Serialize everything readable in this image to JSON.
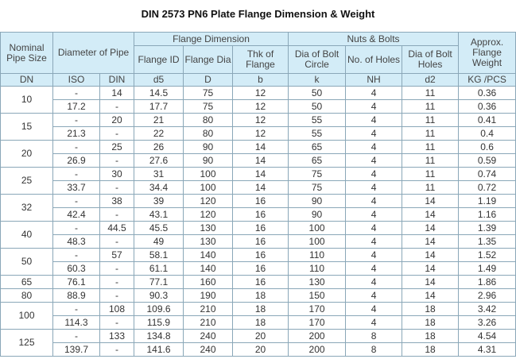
{
  "title": "DIN 2573 PN6 Plate Flange Dimension & Weight",
  "header": {
    "row1": [
      "Nominal Pipe Size",
      "Diameter of Pipe",
      "Flange Dimension",
      "Nuts & Bolts",
      "Approx. Flange Weight"
    ],
    "row2": [
      "Flange ID",
      "Flange Dia",
      "Thk of Flange",
      "Dia of Bolt Circle",
      "No. of Holes",
      "Dia of Bolt Holes"
    ],
    "units": [
      "DN",
      "ISO",
      "DIN",
      "d5",
      "D",
      "b",
      "k",
      "NH",
      "d2",
      "KG /PCS"
    ]
  },
  "table": {
    "groups": [
      {
        "dn": "10",
        "rows": [
          [
            "-",
            "14",
            "14.5",
            "75",
            "12",
            "50",
            "4",
            "11",
            "0.36"
          ],
          [
            "17.2",
            "-",
            "17.7",
            "75",
            "12",
            "50",
            "4",
            "11",
            "0.36"
          ]
        ]
      },
      {
        "dn": "15",
        "rows": [
          [
            "-",
            "20",
            "21",
            "80",
            "12",
            "55",
            "4",
            "11",
            "0.41"
          ],
          [
            "21.3",
            "-",
            "22",
            "80",
            "12",
            "55",
            "4",
            "11",
            "0.4"
          ]
        ]
      },
      {
        "dn": "20",
        "rows": [
          [
            "-",
            "25",
            "26",
            "90",
            "14",
            "65",
            "4",
            "11",
            "0.6"
          ],
          [
            "26.9",
            "-",
            "27.6",
            "90",
            "14",
            "65",
            "4",
            "11",
            "0.59"
          ]
        ]
      },
      {
        "dn": "25",
        "rows": [
          [
            "-",
            "30",
            "31",
            "100",
            "14",
            "75",
            "4",
            "11",
            "0.74"
          ],
          [
            "33.7",
            "-",
            "34.4",
            "100",
            "14",
            "75",
            "4",
            "11",
            "0.72"
          ]
        ]
      },
      {
        "dn": "32",
        "rows": [
          [
            "-",
            "38",
            "39",
            "120",
            "16",
            "90",
            "4",
            "14",
            "1.19"
          ],
          [
            "42.4",
            "-",
            "43.1",
            "120",
            "16",
            "90",
            "4",
            "14",
            "1.16"
          ]
        ]
      },
      {
        "dn": "40",
        "rows": [
          [
            "-",
            "44.5",
            "45.5",
            "130",
            "16",
            "100",
            "4",
            "14",
            "1.39"
          ],
          [
            "48.3",
            "-",
            "49",
            "130",
            "16",
            "100",
            "4",
            "14",
            "1.35"
          ]
        ]
      },
      {
        "dn": "50",
        "rows": [
          [
            "-",
            "57",
            "58.1",
            "140",
            "16",
            "110",
            "4",
            "14",
            "1.52"
          ],
          [
            "60.3",
            "-",
            "61.1",
            "140",
            "16",
            "110",
            "4",
            "14",
            "1.49"
          ]
        ]
      },
      {
        "dn": "65",
        "rows": [
          [
            "76.1",
            "-",
            "77.1",
            "160",
            "16",
            "130",
            "4",
            "14",
            "1.86"
          ]
        ]
      },
      {
        "dn": "80",
        "rows": [
          [
            "88.9",
            "-",
            "90.3",
            "190",
            "18",
            "150",
            "4",
            "14",
            "2.96"
          ]
        ]
      },
      {
        "dn": "100",
        "rows": [
          [
            "-",
            "108",
            "109.6",
            "210",
            "18",
            "170",
            "4",
            "18",
            "3.42"
          ],
          [
            "114.3",
            "-",
            "115.9",
            "210",
            "18",
            "170",
            "4",
            "18",
            "3.26"
          ]
        ]
      },
      {
        "dn": "125",
        "rows": [
          [
            "-",
            "133",
            "134.8",
            "240",
            "20",
            "200",
            "8",
            "18",
            "4.54"
          ],
          [
            "139.7",
            "-",
            "141.6",
            "240",
            "20",
            "200",
            "8",
            "18",
            "4.31"
          ]
        ]
      }
    ]
  }
}
